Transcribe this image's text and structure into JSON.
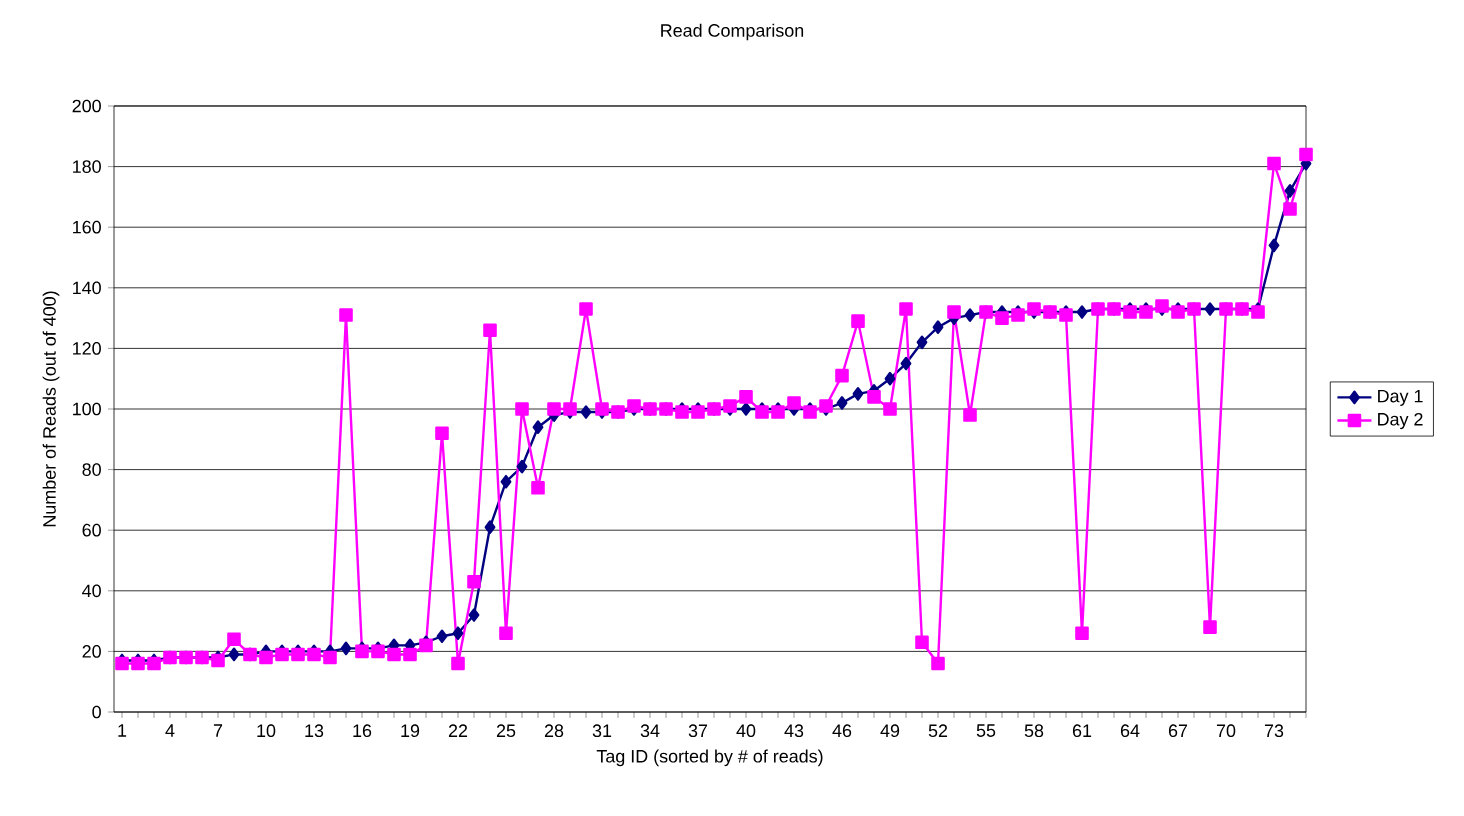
{
  "chart_data": {
    "type": "line",
    "title": "Read Comparison",
    "xlabel": "Tag ID (sorted by # of reads)",
    "ylabel": "Number of Reads (out of 400)",
    "categories": [
      "1",
      null,
      null,
      "4",
      null,
      null,
      "7",
      null,
      null,
      "10",
      null,
      null,
      "13",
      null,
      null,
      "16",
      null,
      null,
      "19",
      null,
      null,
      "22",
      null,
      null,
      "25",
      null,
      null,
      "28",
      null,
      null,
      "31",
      null,
      null,
      "34",
      null,
      null,
      "37",
      null,
      null,
      "40",
      null,
      null,
      "43",
      null,
      null,
      "46",
      null,
      null,
      "49",
      null,
      null,
      "52",
      null,
      null,
      "55",
      null,
      null,
      "58",
      null,
      null,
      "61",
      null,
      null,
      "64",
      null,
      null,
      "67",
      null,
      null,
      "70",
      null,
      null,
      "73",
      null,
      null
    ],
    "ylim": [
      0,
      200
    ],
    "yticks": [
      0,
      20,
      40,
      60,
      80,
      100,
      120,
      140,
      160,
      180,
      200
    ],
    "grid": "y",
    "legend": "right",
    "series": [
      {
        "name": "Day 1",
        "color": "#000080",
        "marker": "diamond",
        "values": [
          17,
          17,
          17,
          18,
          18,
          18,
          18,
          19,
          19,
          20,
          20,
          20,
          20,
          20,
          21,
          21,
          21,
          22,
          22,
          23,
          25,
          26,
          32,
          61,
          76,
          81,
          94,
          98,
          99,
          99,
          99,
          99,
          100,
          100,
          100,
          100,
          100,
          100,
          100,
          100,
          100,
          100,
          100,
          100,
          100,
          102,
          105,
          106,
          110,
          115,
          122,
          127,
          130,
          131,
          132,
          132,
          132,
          132,
          132,
          132,
          132,
          133,
          133,
          133,
          133,
          133,
          133,
          133,
          133,
          133,
          133,
          133,
          154,
          172,
          181
        ]
      },
      {
        "name": "Day 2",
        "color": "#ff00ff",
        "marker": "square",
        "values": [
          16,
          16,
          16,
          18,
          18,
          18,
          17,
          24,
          19,
          18,
          19,
          19,
          19,
          18,
          131,
          20,
          20,
          19,
          19,
          22,
          92,
          16,
          43,
          126,
          26,
          100,
          74,
          100,
          100,
          133,
          100,
          99,
          101,
          100,
          100,
          99,
          99,
          100,
          101,
          104,
          99,
          99,
          102,
          99,
          101,
          111,
          129,
          104,
          100,
          133,
          23,
          16,
          132,
          98,
          132,
          130,
          131,
          133,
          132,
          131,
          26,
          133,
          133,
          132,
          132,
          134,
          132,
          133,
          28,
          133,
          133,
          132,
          181,
          166,
          184
        ]
      }
    ]
  }
}
